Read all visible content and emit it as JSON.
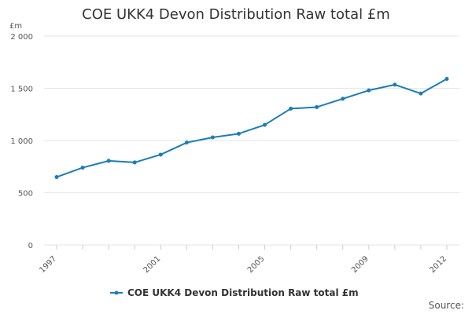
{
  "chart_data": {
    "type": "line",
    "title": "COE UKK4 Devon Distribution Raw total £m",
    "ylabel": "£m",
    "xlabel": "",
    "ylim": [
      0,
      2000
    ],
    "yticks": [
      0,
      500,
      1000,
      1500,
      2000
    ],
    "ytick_labels": [
      "0",
      "500",
      "1 000",
      "1 500",
      "2 000"
    ],
    "xtick_years": [
      1997,
      2001,
      2005,
      2009,
      2012
    ],
    "xtick_labels": [
      "1997",
      "2001",
      "2005",
      "2009",
      "2012"
    ],
    "x": [
      1997,
      1998,
      1999,
      2000,
      2001,
      2002,
      2003,
      2004,
      2005,
      2006,
      2007,
      2008,
      2009,
      2010,
      2011,
      2012
    ],
    "series": [
      {
        "name": "COE UKK4 Devon Distribution Raw total £m",
        "color": "#1a7db8",
        "values": [
          650,
          740,
          805,
          790,
          865,
          980,
          1030,
          1065,
          1150,
          1305,
          1320,
          1400,
          1480,
          1535,
          1450,
          1590
        ]
      }
    ],
    "grid": true,
    "legend": "bottom-center"
  },
  "footer": {
    "source_label": "Source:"
  }
}
